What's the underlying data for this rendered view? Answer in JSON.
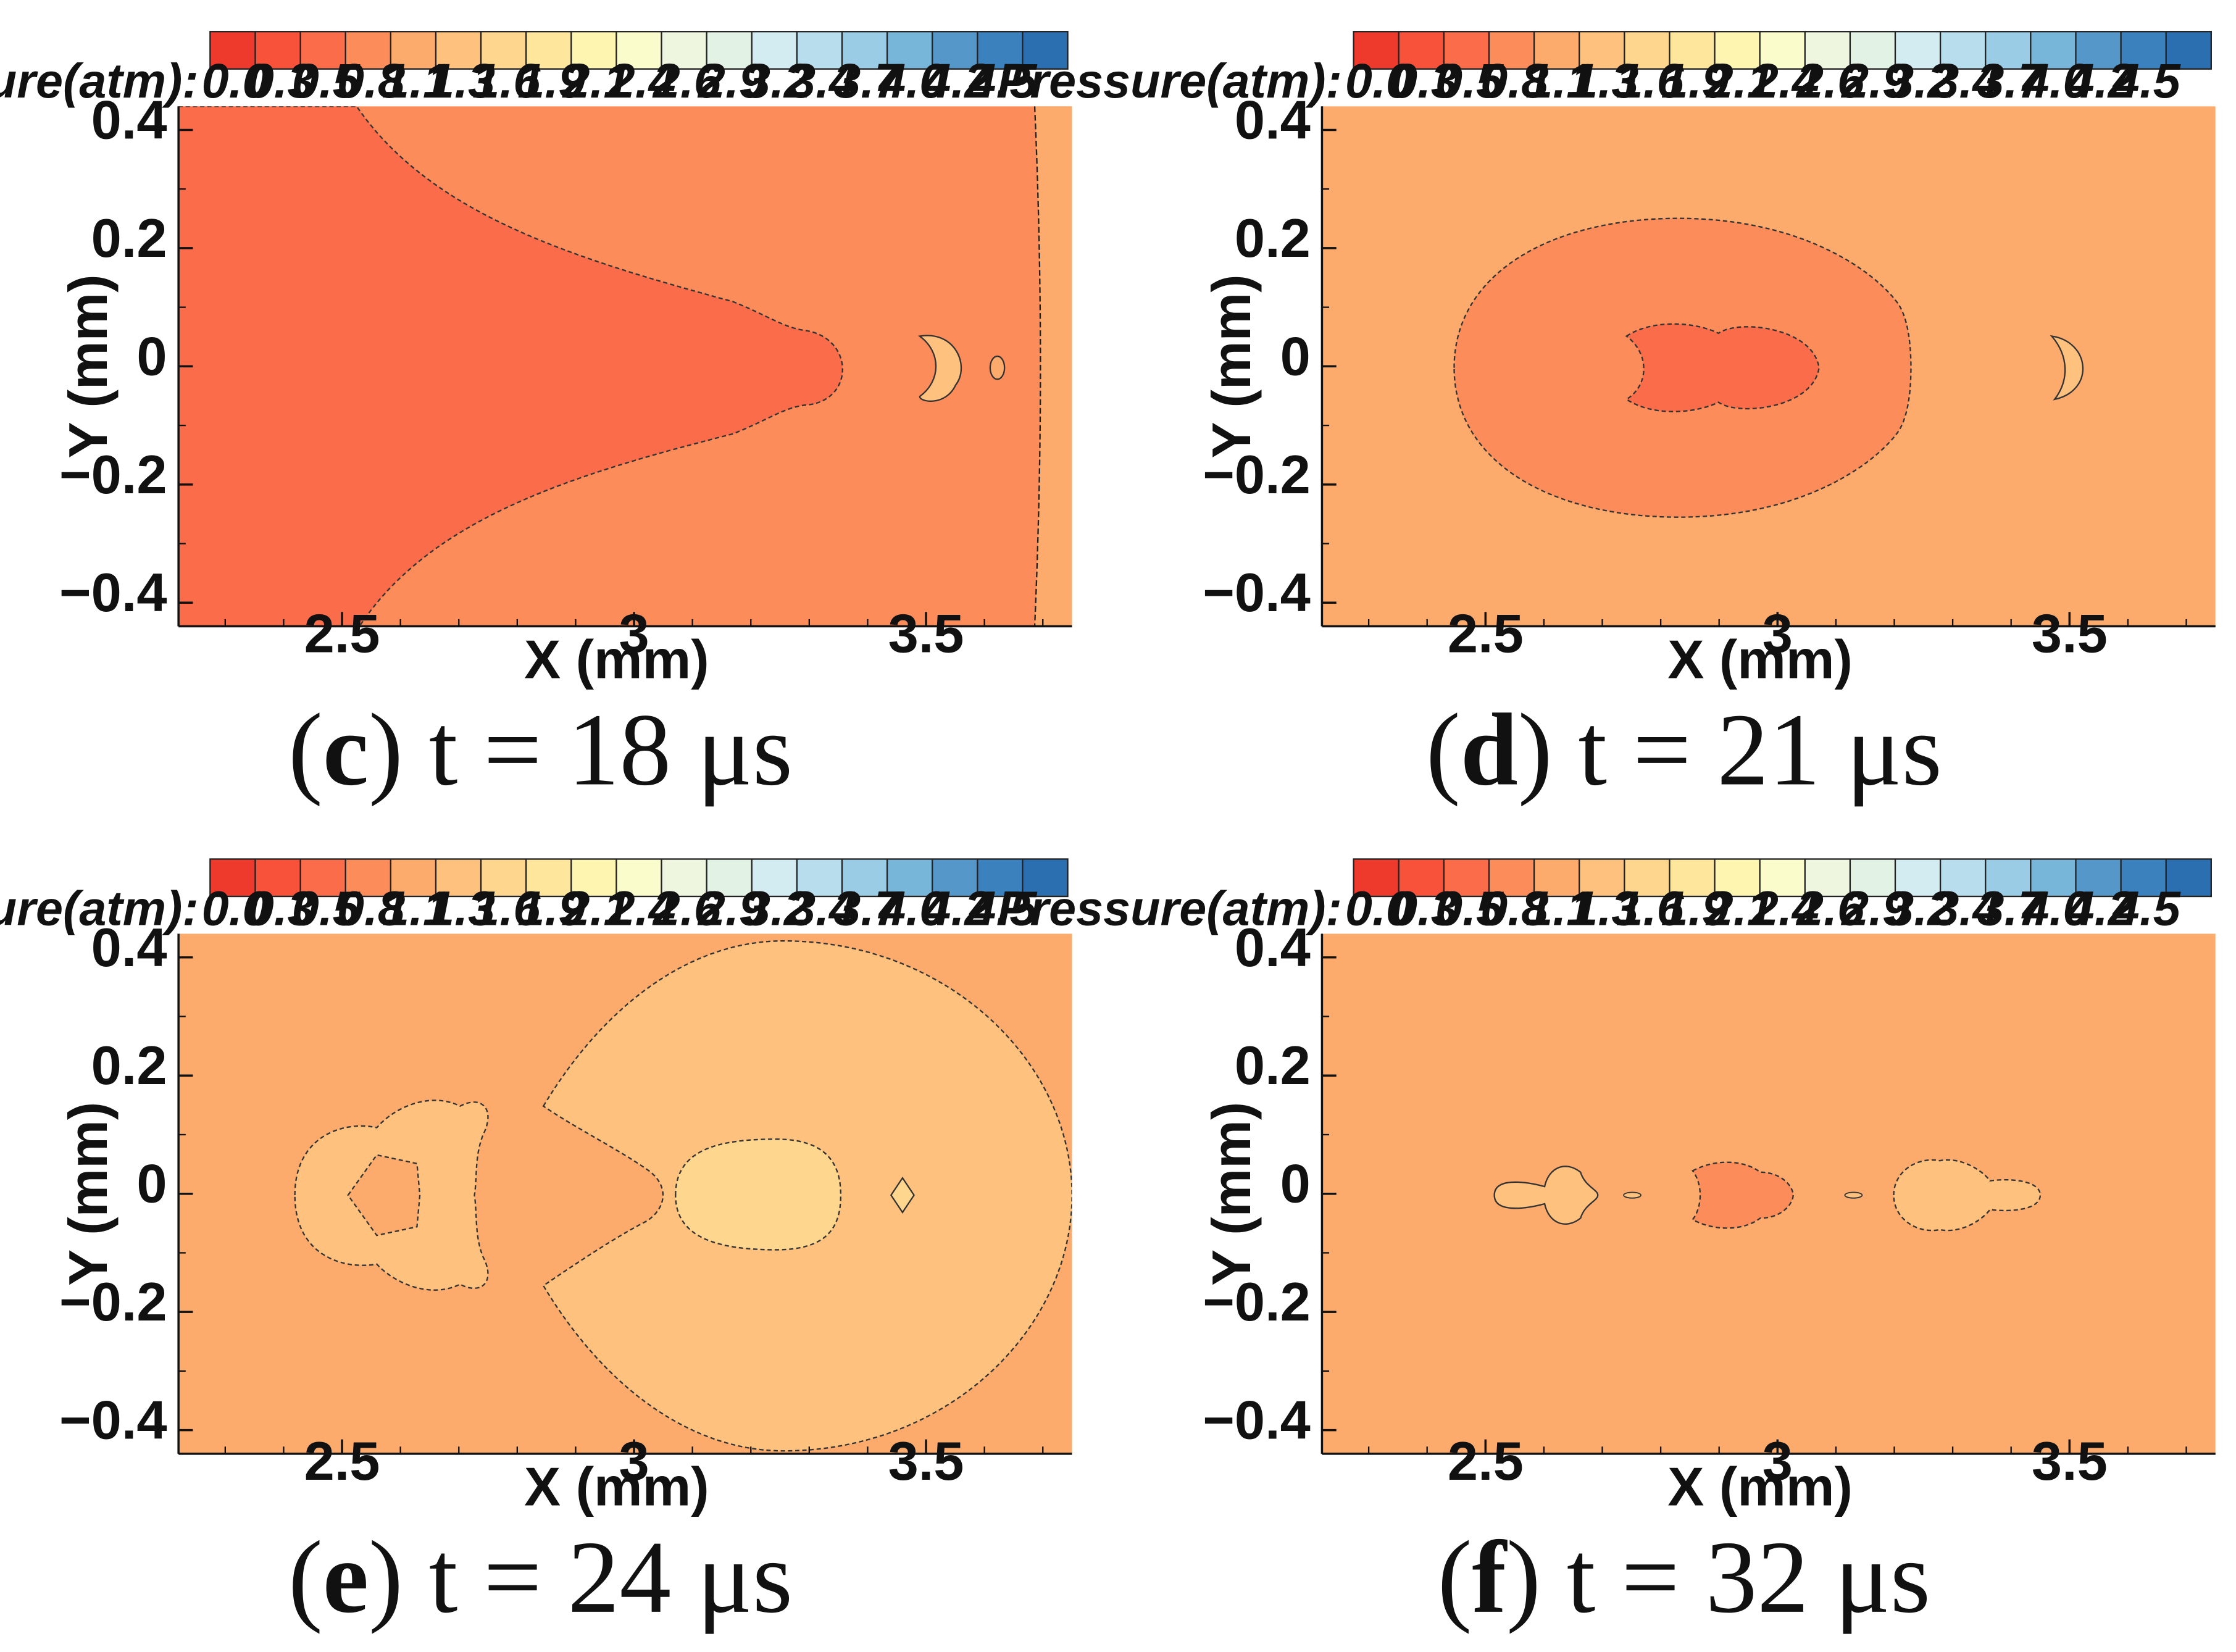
{
  "figure": {
    "colorbar": {
      "label": "Pressure(atm):",
      "ticks": [
        "0.0",
        "0.3",
        "0.5",
        "0.8",
        "1.1",
        "1.3",
        "1.6",
        "1.9",
        "2.1",
        "2.4",
        "2.6",
        "2.9",
        "3.2",
        "3.4",
        "3.7",
        "4.0",
        "4.2",
        "4.5"
      ],
      "colors": [
        "#ee3a2c",
        "#f8523a",
        "#fa6c4a",
        "#fc8c59",
        "#fdab6d",
        "#fec17e",
        "#fed68d",
        "#fee69d",
        "#fef6b0",
        "#fbfccc",
        "#eef6df",
        "#e2f2e4",
        "#d2ecf2",
        "#b8ddec",
        "#9acde5",
        "#78b6d9",
        "#5597c9",
        "#3a81bd",
        "#2b6fb0"
      ]
    },
    "axis_labels": {
      "x": "X (mm)",
      "y": "Y (mm)"
    },
    "x_tick_labels": [
      "2.5",
      "3",
      "3.5"
    ],
    "y_tick_labels": [
      "0.4",
      "0.2",
      "0",
      "−0.2",
      "−0.4"
    ],
    "captions": [
      {
        "letter": "c",
        "text": ") t = 18 μs"
      },
      {
        "letter": "d",
        "text": ") t = 21 μs"
      },
      {
        "letter": "e",
        "text": ") t = 24 μs"
      },
      {
        "letter": "f",
        "text": ") t = 32 μs"
      }
    ]
  },
  "chart_data": [
    {
      "type": "heatmap",
      "title": "(c) t = 18 μs",
      "xlabel": "X (mm)",
      "ylabel": "Y (mm)",
      "xlim": [
        2.22,
        3.75
      ],
      "ylim": [
        -0.44,
        0.44
      ],
      "x_ticks": [
        2.5,
        3,
        3.5
      ],
      "y_ticks": [
        0.4,
        0.2,
        0,
        -0.2,
        -0.4
      ],
      "variable": "Pressure (atm)",
      "value_range": [
        0.0,
        4.5
      ],
      "background_level": "0.5",
      "regions": [
        {
          "name": "low-pressure wedge",
          "level": "0.3",
          "x_extent": [
            2.22,
            3.37
          ]
        },
        {
          "name": "bubble fragment",
          "level": "0.8",
          "x": 3.53,
          "y": 0.0
        },
        {
          "name": "shock front",
          "x": 3.72
        }
      ]
    },
    {
      "type": "heatmap",
      "title": "(d) t = 21 μs",
      "xlabel": "X (mm)",
      "ylabel": "Y (mm)",
      "xlim": [
        2.22,
        3.75
      ],
      "ylim": [
        -0.44,
        0.44
      ],
      "x_ticks": [
        2.5,
        3,
        3.5
      ],
      "y_ticks": [
        0.4,
        0.2,
        0,
        -0.2,
        -0.4
      ],
      "variable": "Pressure (atm)",
      "value_range": [
        0.0,
        4.5
      ],
      "background_level": "0.8",
      "regions": [
        {
          "name": "elliptical low-pressure zone",
          "level": "0.5",
          "x_extent": [
            2.45,
            3.23
          ]
        },
        {
          "name": "bubble core",
          "level": "0.3",
          "x_extent": [
            2.73,
            3.07
          ]
        },
        {
          "name": "bubble fragment",
          "level": "1.1",
          "x": 3.49,
          "y": 0.0
        }
      ]
    },
    {
      "type": "heatmap",
      "title": "(e) t = 24 μs",
      "xlabel": "X (mm)",
      "ylabel": "Y (mm)",
      "xlim": [
        2.22,
        3.75
      ],
      "ylim": [
        -0.44,
        0.44
      ],
      "x_ticks": [
        2.5,
        3,
        3.5
      ],
      "y_ticks": [
        0.4,
        0.2,
        0,
        -0.2,
        -0.4
      ],
      "variable": "Pressure (atm)",
      "value_range": [
        0.0,
        4.5
      ],
      "background_level": "0.8",
      "regions": [
        {
          "name": "expanding pressure wave",
          "level": "1.1",
          "center_x": 3.28,
          "radius": 0.43
        },
        {
          "name": "bubble core",
          "level": "1.3",
          "x_extent": [
            3.07,
            3.36
          ]
        },
        {
          "name": "bubble fragment ring",
          "level": "1.1",
          "x_extent": [
            2.43,
            2.78
          ]
        }
      ]
    },
    {
      "type": "heatmap",
      "title": "(f) t = 32 μs",
      "xlabel": "X (mm)",
      "ylabel": "Y (mm)",
      "xlim": [
        2.22,
        3.75
      ],
      "ylim": [
        -0.44,
        0.44
      ],
      "x_ticks": [
        2.5,
        3,
        3.5
      ],
      "y_ticks": [
        0.4,
        0.2,
        0,
        -0.2,
        -0.4
      ],
      "variable": "Pressure (atm)",
      "value_range": [
        0.0,
        4.5
      ],
      "background_level": "0.8",
      "regions": [
        {
          "name": "bubble fragment",
          "level": "1.1",
          "x_extent": [
            2.55,
            2.7
          ]
        },
        {
          "name": "bubble fragment",
          "level": "0.8",
          "x_extent": [
            2.84,
            3.0
          ]
        },
        {
          "name": "bubble fragment",
          "level": "1.1",
          "x_extent": [
            3.2,
            3.43
          ]
        }
      ]
    }
  ]
}
